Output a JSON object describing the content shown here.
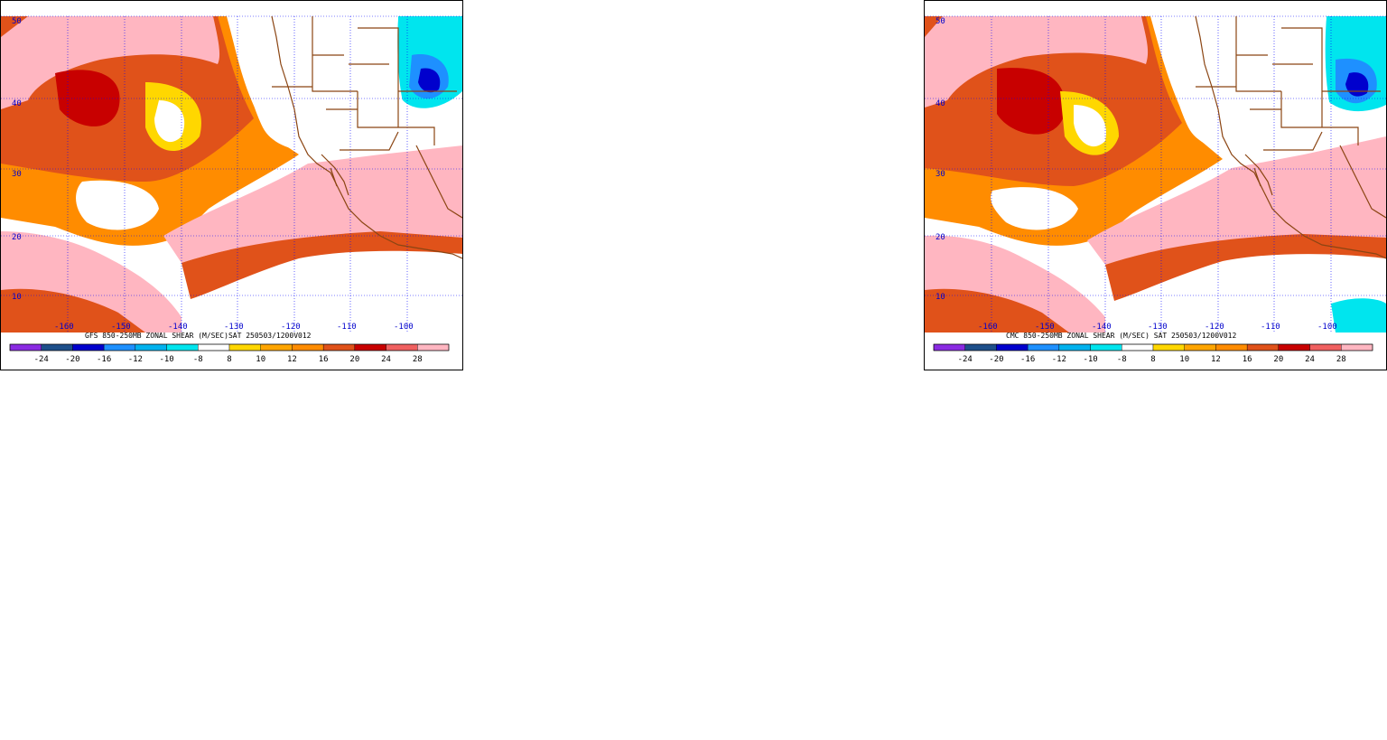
{
  "panels": [
    {
      "model": "GFS",
      "caption": "GFS 850-250MB ZONAL SHEAR (M/SEC)SAT 250503/1200V012",
      "lat_labels": [
        "50",
        "40",
        "30",
        "20",
        "10"
      ],
      "lon_labels": [
        "-160",
        "-150",
        "-140",
        "-130",
        "-120",
        "-110",
        "-100"
      ]
    },
    {
      "model": "CMC",
      "caption": "CMC 850-250MB ZONAL SHEAR (M/SEC) SAT 250503/1200V012",
      "lat_labels": [
        "50",
        "40",
        "30",
        "20",
        "10"
      ],
      "lon_labels": [
        "-160",
        "-150",
        "-140",
        "-130",
        "-120",
        "-110",
        "-100"
      ]
    }
  ],
  "colorbar": {
    "ticks": [
      "-24",
      "-20",
      "-16",
      "-12",
      "-10",
      "-8",
      "8",
      "10",
      "12",
      "16",
      "20",
      "24",
      "28"
    ],
    "colors": [
      "#8a2be2",
      "#1e4f8a",
      "#0000cd",
      "#1e90ff",
      "#00b2ee",
      "#00e5ee",
      "#ffffff",
      "#ffd700",
      "#ffa500",
      "#ff8c00",
      "#e0521a",
      "#c80000",
      "#f06060",
      "#ffb6c1"
    ]
  },
  "colors": {
    "map_border": "#8b4513",
    "grid": "#0000ff",
    "label": "#0000cc"
  }
}
